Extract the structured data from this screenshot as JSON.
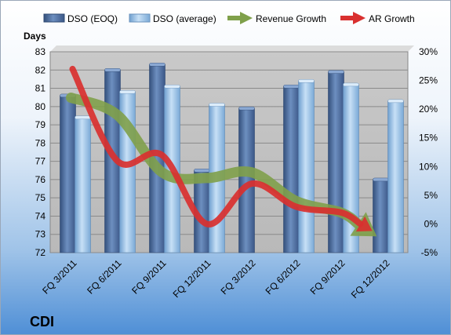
{
  "chart_data": {
    "type": "bar",
    "company_label": "CDI",
    "ylabel_left": "Days",
    "categories": [
      "FQ 3/2011",
      "FQ 6/2011",
      "FQ 9/2011",
      "FQ 12/2011",
      "FQ 3/2012",
      "FQ 6/2012",
      "FQ 9/2012",
      "FQ 12/2012"
    ],
    "series": [
      {
        "name": "DSO (EOQ)",
        "kind": "bar",
        "axis": "left",
        "color": "#4a6a9c",
        "values": [
          80.6,
          82.0,
          82.3,
          76.5,
          79.9,
          81.1,
          81.9,
          76.0
        ]
      },
      {
        "name": "DSO (average)",
        "kind": "bar",
        "axis": "left",
        "color": "#9ec5ea",
        "values": [
          79.4,
          80.8,
          81.1,
          80.1,
          null,
          81.4,
          81.2,
          80.3
        ]
      },
      {
        "name": "Revenue Growth",
        "kind": "line",
        "axis": "right",
        "color": "#7fa04a",
        "values": [
          0.22,
          0.19,
          0.09,
          0.08,
          0.09,
          0.04,
          0.02,
          0.0
        ]
      },
      {
        "name": "AR Growth",
        "kind": "line",
        "axis": "right",
        "color": "#d9302f",
        "values": [
          0.27,
          0.11,
          0.12,
          0.0,
          0.07,
          0.03,
          0.02,
          0.0
        ]
      }
    ],
    "ylim_left": [
      72,
      83
    ],
    "yticks_left": [
      72,
      73,
      74,
      75,
      76,
      77,
      78,
      79,
      80,
      81,
      82,
      83
    ],
    "ylim_right": [
      -0.05,
      0.3
    ],
    "yticks_right": [
      "-5%",
      "0%",
      "5%",
      "10%",
      "15%",
      "20%",
      "25%",
      "30%"
    ],
    "grid": true,
    "legend_position": "top"
  }
}
